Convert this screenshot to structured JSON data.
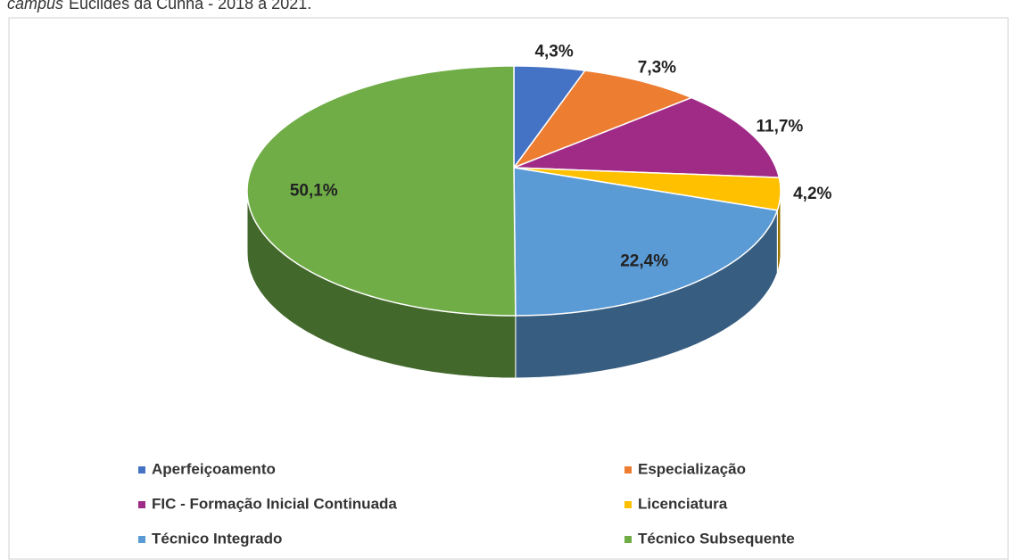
{
  "chart_data": {
    "type": "pie",
    "caption": [
      "campus",
      "Euclides da Cunha - 2018 a 2021."
    ],
    "categories": [
      "Aperfeiçoamento",
      "Especialização",
      "FIC - Formação Inicial Continuada",
      "Licenciatura",
      "Técnico Integrado",
      "Técnico Subsequente"
    ],
    "values": [
      4.3,
      7.3,
      11.7,
      4.2,
      22.4,
      50.1
    ],
    "value_labels": [
      "4,3%",
      "7,3%",
      "11,7%",
      "4,2%",
      "22,4%",
      "50,1%"
    ],
    "colors": [
      "#4472c4",
      "#ed7d31",
      "#a02b87",
      "#ffc000",
      "#5b9bd5",
      "#70ad47"
    ],
    "legend": "bottom"
  }
}
